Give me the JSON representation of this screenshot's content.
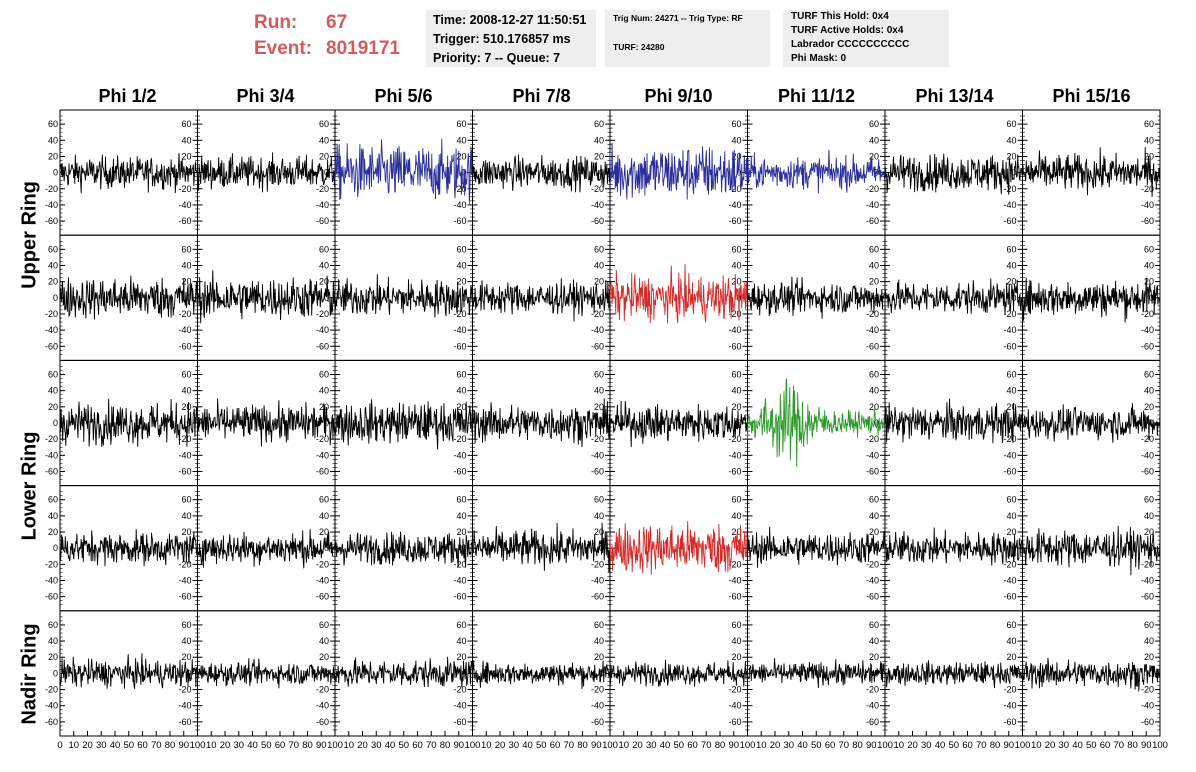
{
  "header": {
    "run_label": "Run:",
    "run_value": "67",
    "event_label": "Event:",
    "event_value": "8019171",
    "time_line": "Time: 2008-12-27 11:50:51",
    "trigger_line": "Trigger: 510.176857 ms",
    "priority_line": "Priority: 7 -- Queue: 7",
    "trig_line": "Trig Num: 24271 -- Trig Type: RF",
    "turf_line": "TURF: 24280",
    "turf_hold_line": "TURF This Hold: 0x4",
    "turf_active_line": "TURF Active Holds: 0x4",
    "labrador_line": "Labrador CCCCCCCCCC",
    "phi_mask_line": "Phi Mask: 0"
  },
  "columns": [
    "Phi 1/2",
    "Phi 3/4",
    "Phi 5/6",
    "Phi 7/8",
    "Phi 9/10",
    "Phi 11/12",
    "Phi 13/14",
    "Phi 15/16"
  ],
  "rings": [
    {
      "label": "Upper Ring",
      "rows": [
        0,
        1
      ]
    },
    {
      "label": "Lower Ring",
      "rows": [
        2,
        3
      ]
    },
    {
      "label": "Nadir Ring",
      "rows": [
        4
      ]
    }
  ],
  "colors": {
    "normal": "#000000",
    "blue": "#2b2f99",
    "red": "#d42a2a",
    "green": "#2a9a2a",
    "header_red": "#d55a5a"
  },
  "chart_data": {
    "type": "line",
    "description_grid": "5 rows x 8 columns of waveform panels",
    "x_ticks": [
      0,
      10,
      20,
      30,
      40,
      50,
      60,
      70,
      80,
      90,
      100
    ],
    "x_tick_labels": [
      "0",
      "10",
      "20",
      "30",
      "40",
      "50",
      "60",
      "70",
      "80",
      "90",
      "100"
    ],
    "y_ticks": [
      -60,
      -40,
      -20,
      0,
      20,
      40,
      60
    ],
    "y_tick_labels": [
      "-60",
      "-40",
      "-20",
      "0",
      "20",
      "40",
      "60"
    ],
    "ylim": [
      -75,
      75
    ],
    "xlim": [
      0,
      100
    ],
    "panel_colors": [
      [
        "normal",
        "normal",
        "blue",
        "normal",
        "blue",
        "blue",
        "normal",
        "normal"
      ],
      [
        "normal",
        "normal",
        "normal",
        "normal",
        "red",
        "normal",
        "normal",
        "normal"
      ],
      [
        "normal",
        "normal",
        "normal",
        "normal",
        "normal",
        "green",
        "normal",
        "normal"
      ],
      [
        "normal",
        "normal",
        "normal",
        "normal",
        "red",
        "normal",
        "normal",
        "normal"
      ],
      [
        "normal",
        "normal",
        "normal",
        "normal",
        "normal",
        "normal",
        "normal",
        "normal"
      ]
    ],
    "panel_amplitudes": [
      [
        14,
        14,
        24,
        14,
        24,
        14,
        16,
        16
      ],
      [
        18,
        18,
        16,
        14,
        20,
        14,
        14,
        16
      ],
      [
        18,
        16,
        18,
        16,
        16,
        20,
        16,
        14
      ],
      [
        14,
        14,
        14,
        16,
        22,
        14,
        14,
        16
      ],
      [
        12,
        10,
        12,
        10,
        10,
        10,
        10,
        12
      ]
    ]
  }
}
